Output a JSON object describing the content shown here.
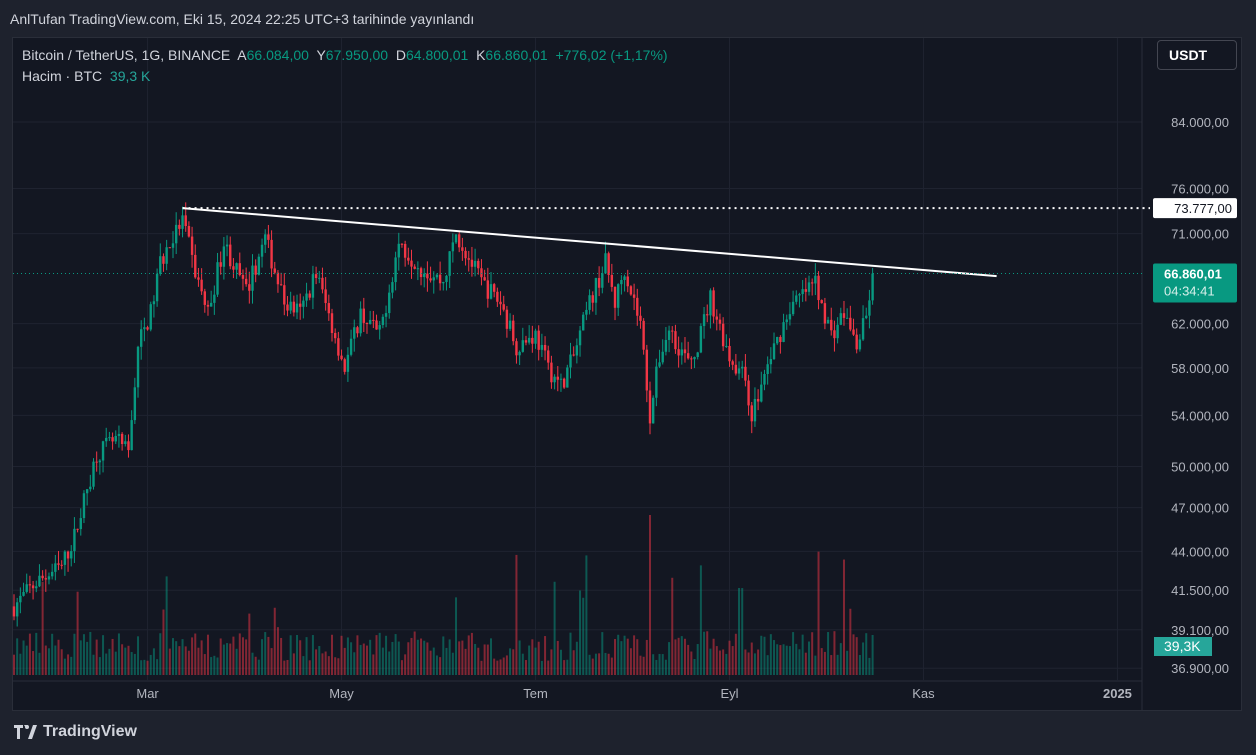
{
  "published": "AnlTufan TradingView.com, Eki 15, 2024 22:25 UTC+3 tarihinde yayınlandı",
  "legend": {
    "symbol": "Bitcoin / TetherUS, 1G, BINANCE",
    "o_label": "A",
    "o": "66.084,00",
    "h_label": "Y",
    "h": "67.950,00",
    "l_label": "D",
    "l": "64.800,01",
    "c_label": "K",
    "c": "66.860,01",
    "change": "+776,02 (+1,17%)",
    "volume_label": "Hacim · BTC",
    "volume": "39,3 K"
  },
  "currency": "USDT",
  "footer": {
    "brand": "TradingView"
  },
  "chart_data": {
    "type": "candlestick",
    "scale": "log",
    "ylim": [
      36000,
      90000
    ],
    "y_ticks": [
      {
        "v": 84000,
        "l": "84.000,00"
      },
      {
        "v": 76000,
        "l": "76.000,00"
      },
      {
        "v": 71000,
        "l": "71.000,00"
      },
      {
        "v": 62000,
        "l": "62.000,00"
      },
      {
        "v": 58000,
        "l": "58.000,00"
      },
      {
        "v": 54000,
        "l": "54.000,00"
      },
      {
        "v": 50000,
        "l": "50.000,00"
      },
      {
        "v": 47000,
        "l": "47.000,00"
      },
      {
        "v": 44000,
        "l": "44.000,00"
      },
      {
        "v": 41500,
        "l": "41.500,00"
      },
      {
        "v": 39100,
        "l": "39.100,00"
      },
      {
        "v": 36900,
        "l": "36.900,00"
      }
    ],
    "x_ticks": [
      {
        "d": 42,
        "l": "Mar"
      },
      {
        "d": 103,
        "l": "May"
      },
      {
        "d": 164,
        "l": "Tem"
      },
      {
        "d": 225,
        "l": "Eyl"
      },
      {
        "d": 286,
        "l": "Kas"
      },
      {
        "d": 347,
        "l": "2025"
      }
    ],
    "last_price": {
      "value": 66860.01,
      "label": "66.860,01",
      "countdown": "04:34:41"
    },
    "horizontal_line": {
      "value": 73777,
      "label": "73.777,00"
    },
    "trendline": {
      "from": {
        "d": 53,
        "v": 73777
      },
      "to": {
        "d": 309,
        "v": 66600
      }
    },
    "volume_last": "39,3K",
    "price_path": [
      [
        0,
        40500
      ],
      [
        7,
        42000
      ],
      [
        15,
        43000
      ],
      [
        19,
        45000
      ],
      [
        26,
        51000
      ],
      [
        32,
        52000
      ],
      [
        36,
        51000
      ],
      [
        39,
        60000
      ],
      [
        43,
        63000
      ],
      [
        46,
        68000
      ],
      [
        53,
        72500
      ],
      [
        57,
        67000
      ],
      [
        61,
        63000
      ],
      [
        66,
        70000
      ],
      [
        73,
        65000
      ],
      [
        79,
        70500
      ],
      [
        85,
        64000
      ],
      [
        90,
        63000
      ],
      [
        95,
        67000
      ],
      [
        104,
        58000
      ],
      [
        109,
        63000
      ],
      [
        115,
        61000
      ],
      [
        121,
        70000
      ],
      [
        128,
        67500
      ],
      [
        135,
        66000
      ],
      [
        139,
        71000
      ],
      [
        147,
        66000
      ],
      [
        153,
        64000
      ],
      [
        158,
        60000
      ],
      [
        164,
        61000
      ],
      [
        168,
        58000
      ],
      [
        172,
        56500
      ],
      [
        176,
        59000
      ],
      [
        181,
        64000
      ],
      [
        186,
        68000
      ],
      [
        189,
        64000
      ],
      [
        192,
        67500
      ],
      [
        197,
        62000
      ],
      [
        200,
        54000
      ],
      [
        203,
        59000
      ],
      [
        206,
        61500
      ],
      [
        213,
        58000
      ],
      [
        219,
        64500
      ],
      [
        225,
        59000
      ],
      [
        230,
        57000
      ],
      [
        232,
        54000
      ],
      [
        238,
        59000
      ],
      [
        244,
        63500
      ],
      [
        252,
        66000
      ],
      [
        257,
        61000
      ],
      [
        261,
        63000
      ],
      [
        265,
        60000
      ],
      [
        268,
        62500
      ],
      [
        270,
        66860
      ]
    ]
  }
}
